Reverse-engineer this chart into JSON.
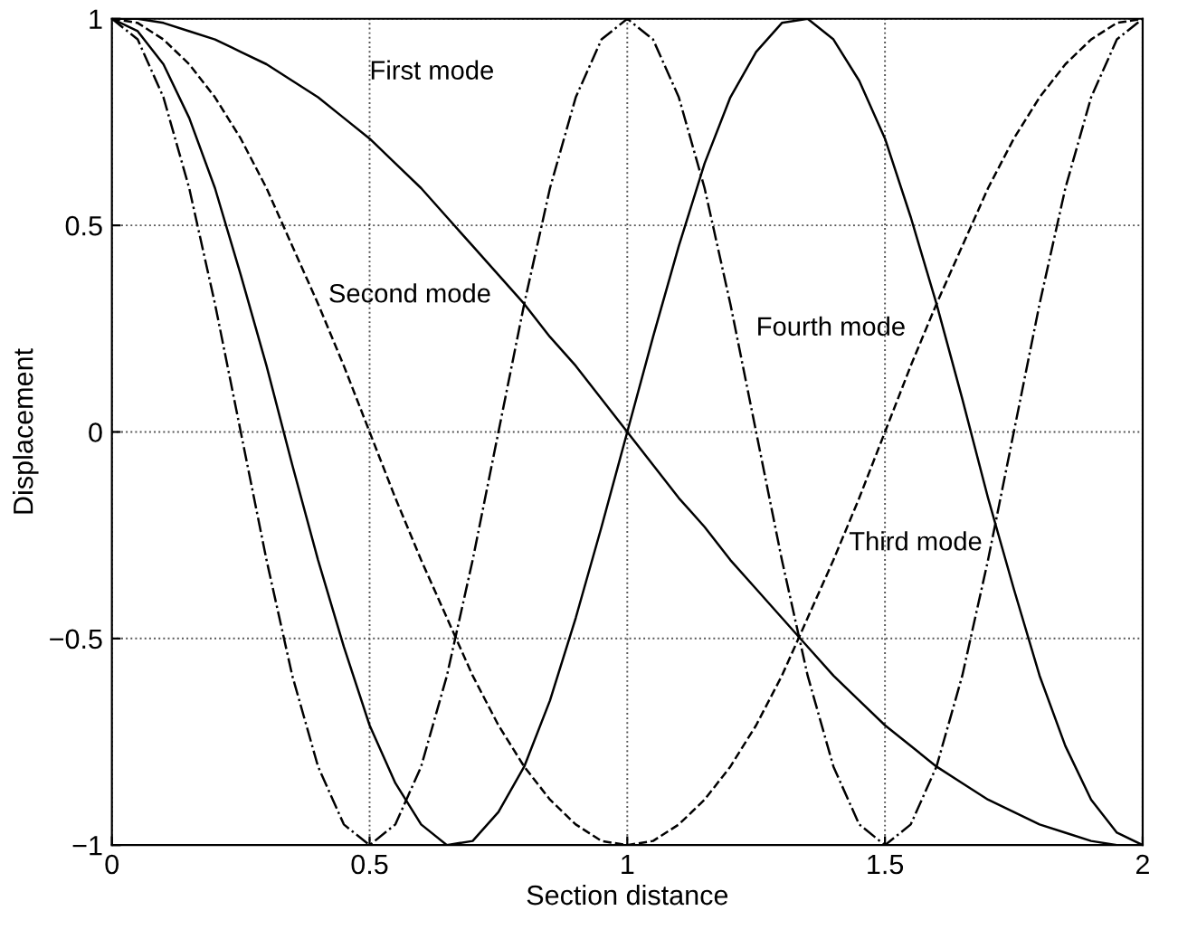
{
  "chart_data": {
    "type": "line",
    "xlabel": "Section distance",
    "ylabel": "Displacement",
    "x": [
      0,
      0.05,
      0.1,
      0.15,
      0.2,
      0.25,
      0.3,
      0.35,
      0.4,
      0.45,
      0.5,
      0.55,
      0.6,
      0.65,
      0.7,
      0.75,
      0.8,
      0.85,
      0.9,
      0.95,
      1,
      1.05,
      1.1,
      1.15,
      1.2,
      1.25,
      1.3,
      1.35,
      1.4,
      1.45,
      1.5,
      1.55,
      1.6,
      1.65,
      1.7,
      1.75,
      1.8,
      1.85,
      1.9,
      1.95,
      2
    ],
    "series": [
      {
        "color": "#000000",
        "line_style": "solid",
        "values": [
          1,
          1,
          0.99,
          0.97,
          0.95,
          0.92,
          0.89,
          0.85,
          0.81,
          0.76,
          0.71,
          0.65,
          0.59,
          0.52,
          0.45,
          0.38,
          0.31,
          0.23,
          0.16,
          0.08,
          0,
          -0.08,
          -0.16,
          -0.23,
          -0.31,
          -0.38,
          -0.45,
          -0.52,
          -0.59,
          -0.65,
          -0.71,
          -0.76,
          -0.81,
          -0.85,
          -0.89,
          -0.92,
          -0.95,
          -0.97,
          -0.99,
          -1,
          -1
        ]
      },
      {
        "color": "#000000",
        "line_style": "dashed",
        "values": [
          1,
          0.99,
          0.95,
          0.89,
          0.81,
          0.71,
          0.59,
          0.45,
          0.31,
          0.16,
          0,
          -0.16,
          -0.31,
          -0.45,
          -0.59,
          -0.71,
          -0.81,
          -0.89,
          -0.95,
          -0.99,
          -1,
          -0.99,
          -0.95,
          -0.89,
          -0.81,
          -0.71,
          -0.59,
          -0.45,
          -0.31,
          -0.16,
          0,
          0.16,
          0.31,
          0.45,
          0.59,
          0.71,
          0.81,
          0.89,
          0.95,
          0.99,
          1
        ]
      },
      {
        "color": "#000000",
        "line_style": "solid",
        "values": [
          1,
          0.97,
          0.89,
          0.76,
          0.59,
          0.38,
          0.16,
          -0.08,
          -0.31,
          -0.52,
          -0.71,
          -0.85,
          -0.95,
          -1,
          -0.99,
          -0.92,
          -0.81,
          -0.65,
          -0.45,
          -0.23,
          0,
          0.23,
          0.45,
          0.65,
          0.81,
          0.92,
          0.99,
          1,
          0.95,
          0.85,
          0.71,
          0.52,
          0.31,
          0.08,
          -0.16,
          -0.38,
          -0.59,
          -0.76,
          -0.89,
          -0.97,
          -1
        ]
      },
      {
        "color": "#000000",
        "line_style": "dashdot",
        "values": [
          1,
          0.95,
          0.81,
          0.59,
          0.31,
          0,
          -0.31,
          -0.59,
          -0.81,
          -0.95,
          -1,
          -0.95,
          -0.81,
          -0.59,
          -0.31,
          0,
          0.31,
          0.59,
          0.81,
          0.95,
          1,
          0.95,
          0.81,
          0.59,
          0.31,
          0,
          -0.31,
          -0.59,
          -0.81,
          -0.95,
          -1,
          -0.95,
          -0.81,
          -0.59,
          -0.31,
          0,
          0.31,
          0.59,
          0.81,
          0.95,
          1
        ]
      }
    ],
    "annotations": [
      "First mode",
      "Second mode",
      "Third mode",
      "Fourth mode"
    ],
    "xlim": [
      0,
      2
    ],
    "ylim": [
      -1,
      1
    ],
    "xticks": [
      0,
      0.5,
      1,
      1.5,
      2
    ],
    "yticks": [
      {
        "value": -1,
        "label": "−1"
      },
      {
        "value": -0.5,
        "label": "−0.5"
      },
      0,
      0.5,
      1
    ],
    "grid": true
  }
}
